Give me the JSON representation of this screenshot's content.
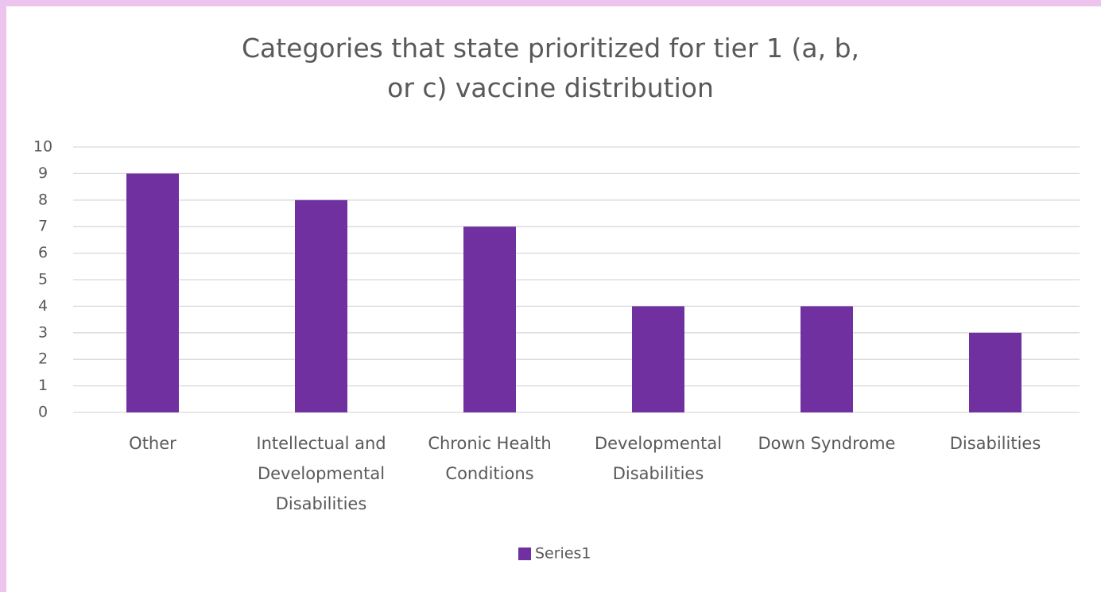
{
  "chart_data": {
    "type": "bar",
    "title": "Categories that state prioritized for tier 1 (a, b, or c) vaccine distribution",
    "categories": [
      "Other",
      "Intellectual and Developmental Disabilities",
      "Chronic Health Conditions",
      "Developmental Disabilities",
      "Down Syndrome",
      "Disabilities"
    ],
    "series": [
      {
        "name": "Series1",
        "color": "#7030a0",
        "values": [
          9,
          8,
          7,
          4,
          4,
          3
        ]
      }
    ],
    "ylim": [
      0,
      10
    ],
    "yticks": [
      0,
      1,
      2,
      3,
      4,
      5,
      6,
      7,
      8,
      9,
      10
    ],
    "grid": true,
    "legend": "bottom"
  }
}
